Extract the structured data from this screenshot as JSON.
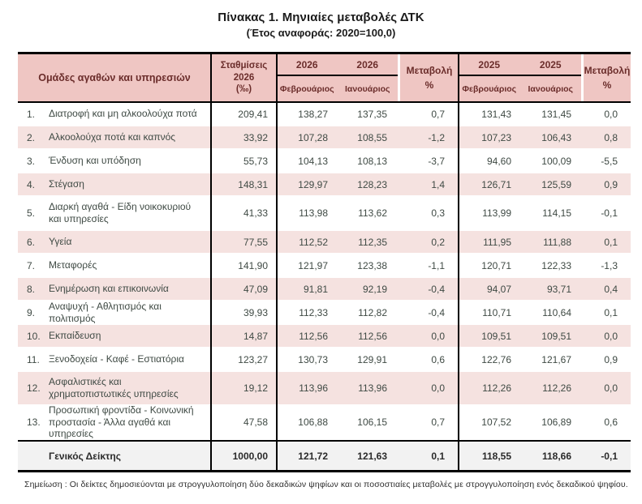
{
  "title": "Πίνακας 1. Μηνιαίες μεταβολές ΔΤΚ",
  "subtitle": "(Έτος αναφοράς: 2020=100,0)",
  "table": {
    "headers": {
      "groups_col": "Ομάδες αγαθών και υπηρεσιών",
      "weights_line1": "Σταθμίσεις",
      "weights_line2": "2026",
      "weights_line3": "(‰)",
      "year_2026": "2026",
      "year_2025": "2025",
      "month_feb": "Φεβρουάριος",
      "month_jan": "Ιανουάριος",
      "change_line1": "Μεταβολή",
      "change_line2": "%"
    },
    "rows": [
      {
        "no": "1.",
        "label": "Διατροφή και μη αλκοολούχα ποτά",
        "weight": "209,41",
        "feb26": "138,27",
        "jan26": "137,35",
        "chg26": "0,7",
        "feb25": "131,43",
        "jan25": "131,45",
        "chg25": "0,0"
      },
      {
        "no": "2.",
        "label": "Αλκοολούχα ποτά και καπνός",
        "weight": "33,92",
        "feb26": "107,28",
        "jan26": "108,55",
        "chg26": "-1,2",
        "feb25": "107,23",
        "jan25": "106,43",
        "chg25": "0,8"
      },
      {
        "no": "3.",
        "label": "Ένδυση και υπόδηση",
        "weight": "55,73",
        "feb26": "104,13",
        "jan26": "108,13",
        "chg26": "-3,7",
        "feb25": "94,60",
        "jan25": "100,09",
        "chg25": "-5,5"
      },
      {
        "no": "4.",
        "label": "Στέγαση",
        "weight": "148,31",
        "feb26": "129,97",
        "jan26": "128,23",
        "chg26": "1,4",
        "feb25": "126,71",
        "jan25": "125,59",
        "chg25": "0,9"
      },
      {
        "no": "5.",
        "label": "Διαρκή αγαθά - Είδη νοικοκυριού και υπηρεσίες",
        "weight": "41,33",
        "feb26": "113,98",
        "jan26": "113,62",
        "chg26": "0,3",
        "feb25": "113,99",
        "jan25": "114,15",
        "chg25": "-0,1"
      },
      {
        "no": "6.",
        "label": "Υγεία",
        "weight": "77,55",
        "feb26": "112,52",
        "jan26": "112,35",
        "chg26": "0,2",
        "feb25": "111,95",
        "jan25": "111,88",
        "chg25": "0,1"
      },
      {
        "no": "7.",
        "label": "Μεταφορές",
        "weight": "141,90",
        "feb26": "121,97",
        "jan26": "123,38",
        "chg26": "-1,1",
        "feb25": "120,71",
        "jan25": "122,33",
        "chg25": "-1,3"
      },
      {
        "no": "8.",
        "label": "Ενημέρωση και επικοινωνία",
        "weight": "47,09",
        "feb26": "91,81",
        "jan26": "92,19",
        "chg26": "-0,4",
        "feb25": "94,07",
        "jan25": "93,71",
        "chg25": "0,4"
      },
      {
        "no": "9.",
        "label": "Αναψυχή - Αθλητισμός και πολιτισμός",
        "weight": "39,93",
        "feb26": "112,33",
        "jan26": "112,82",
        "chg26": "-0,4",
        "feb25": "110,71",
        "jan25": "110,64",
        "chg25": "0,1"
      },
      {
        "no": "10.",
        "label": "Εκπαίδευση",
        "weight": "14,87",
        "feb26": "112,56",
        "jan26": "112,56",
        "chg26": "0,0",
        "feb25": "109,51",
        "jan25": "109,51",
        "chg25": "0,0"
      },
      {
        "no": "11.",
        "label": "Ξενοδοχεία - Καφέ - Εστιατόρια",
        "weight": "123,27",
        "feb26": "130,73",
        "jan26": "129,91",
        "chg26": "0,6",
        "feb25": "122,76",
        "jan25": "121,67",
        "chg25": "0,9"
      },
      {
        "no": "12.",
        "label": "Ασφαλιστικές και χρηματοπιστωτικές υπηρεσίες",
        "weight": "19,12",
        "feb26": "113,96",
        "jan26": "113,96",
        "chg26": "0,0",
        "feb25": "112,26",
        "jan25": "112,26",
        "chg25": "0,0"
      },
      {
        "no": "13.",
        "label": "Προσωπική φροντίδα - Κοινωνική προστασία - Άλλα αγαθά και υπηρεσίες",
        "weight": "47,58",
        "feb26": "106,88",
        "jan26": "106,15",
        "chg26": "0,7",
        "feb25": "107,52",
        "jan25": "106,89",
        "chg25": "0,6"
      }
    ],
    "total": {
      "label": "Γενικός Δείκτης",
      "weight": "1000,00",
      "feb26": "121,72",
      "jan26": "121,63",
      "chg26": "0,1",
      "feb25": "118,55",
      "jan25": "118,66",
      "chg25": "-0,1"
    }
  },
  "footnote": "Σημείωση : Οι δείκτες δημοσιεύονται με στρογγυλοποίηση δύο δεκαδικών ψηφίων και οι ποσοστιαίες μεταβολές με στρογγυλοποίηση ενός δεκαδικού ψηφίου.",
  "colors": {
    "header_bg": "#efc6c3",
    "row_alt_bg": "#f5e2e0",
    "total_bg": "#f2f2f2",
    "header_text": "#6b2d2b",
    "body_text": "#3f4a44"
  }
}
